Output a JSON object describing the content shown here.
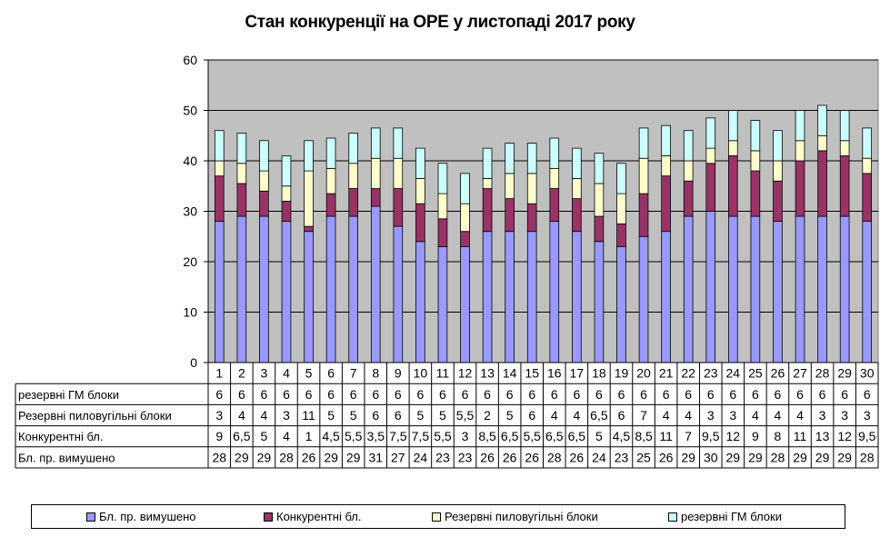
{
  "chart_data": {
    "type": "bar",
    "stacked": true,
    "title": "Стан конкуренції на ОРЕ  у листопаді 2017 року",
    "ylim": [
      0,
      60
    ],
    "yticks": [
      "0",
      "10",
      "20",
      "30",
      "40",
      "50",
      "60"
    ],
    "grid": true,
    "legend_position": "bottom",
    "categories": [
      "1",
      "2",
      "3",
      "4",
      "5",
      "6",
      "7",
      "8",
      "9",
      "10",
      "11",
      "12",
      "13",
      "14",
      "15",
      "16",
      "17",
      "18",
      "19",
      "20",
      "21",
      "22",
      "23",
      "24",
      "25",
      "26",
      "27",
      "28",
      "29",
      "30"
    ],
    "series": [
      {
        "name": "Бл. пр. вимушено",
        "color": "#9999FF",
        "values": [
          28,
          29,
          29,
          28,
          26,
          29,
          29,
          31,
          27,
          24,
          23,
          23,
          26,
          26,
          26,
          28,
          26,
          24,
          23,
          25,
          26,
          29,
          30,
          29,
          29,
          28,
          29,
          29,
          29,
          28
        ],
        "labels": [
          "28",
          "29",
          "29",
          "28",
          "26",
          "29",
          "29",
          "31",
          "27",
          "24",
          "23",
          "23",
          "26",
          "26",
          "26",
          "28",
          "26",
          "24",
          "23",
          "25",
          "26",
          "29",
          "30",
          "29",
          "29",
          "28",
          "29",
          "29",
          "29",
          "28"
        ]
      },
      {
        "name": "Конкурентні  бл.",
        "color": "#993366",
        "values": [
          9,
          6.5,
          5,
          4,
          1,
          4.5,
          5.5,
          3.5,
          7.5,
          7.5,
          5.5,
          3,
          8.5,
          6.5,
          5.5,
          6.5,
          6.5,
          5,
          4.5,
          8.5,
          11,
          7,
          9.5,
          12,
          9,
          8,
          11,
          13,
          12,
          9.5
        ],
        "labels": [
          "9",
          "6,5",
          "5",
          "4",
          "1",
          "4,5",
          "5,5",
          "3,5",
          "7,5",
          "7,5",
          "5,5",
          "3",
          "8,5",
          "6,5",
          "5,5",
          "6,5",
          "6,5",
          "5",
          "4,5",
          "8,5",
          "11",
          "7",
          "9,5",
          "12",
          "9",
          "8",
          "11",
          "13",
          "12",
          "9,5"
        ]
      },
      {
        "name": "Резервні пиловугільні  блоки",
        "color": "#FFFFCC",
        "values": [
          3,
          4,
          4,
          3,
          11,
          5,
          5,
          6,
          6,
          5,
          5,
          5.5,
          2,
          5,
          6,
          4,
          4,
          6.5,
          6,
          7,
          4,
          4,
          3,
          3,
          4,
          4,
          4,
          3,
          3,
          3
        ],
        "labels": [
          "3",
          "4",
          "4",
          "3",
          "11",
          "5",
          "5",
          "6",
          "6",
          "5",
          "5",
          "5,5",
          "2",
          "5",
          "6",
          "4",
          "4",
          "6,5",
          "6",
          "7",
          "4",
          "4",
          "3",
          "3",
          "4",
          "4",
          "4",
          "3",
          "3",
          "3"
        ]
      },
      {
        "name": "резервні ГМ блоки",
        "color": "#CCFFFF",
        "values": [
          6,
          6,
          6,
          6,
          6,
          6,
          6,
          6,
          6,
          6,
          6,
          6,
          6,
          6,
          6,
          6,
          6,
          6,
          6,
          6,
          6,
          6,
          6,
          6,
          6,
          6,
          6,
          6,
          6,
          6
        ],
        "labels": [
          "6",
          "6",
          "6",
          "6",
          "6",
          "6",
          "6",
          "6",
          "6",
          "6",
          "6",
          "6",
          "6",
          "6",
          "6",
          "6",
          "6",
          "6",
          "6",
          "6",
          "6",
          "6",
          "6",
          "6",
          "6",
          "6",
          "6",
          "6",
          "6",
          "6"
        ]
      }
    ],
    "table_row_order": [
      3,
      2,
      1,
      0
    ],
    "colors": {
      "plot_background": "#C0C0C0",
      "gridline": "#000000"
    }
  }
}
